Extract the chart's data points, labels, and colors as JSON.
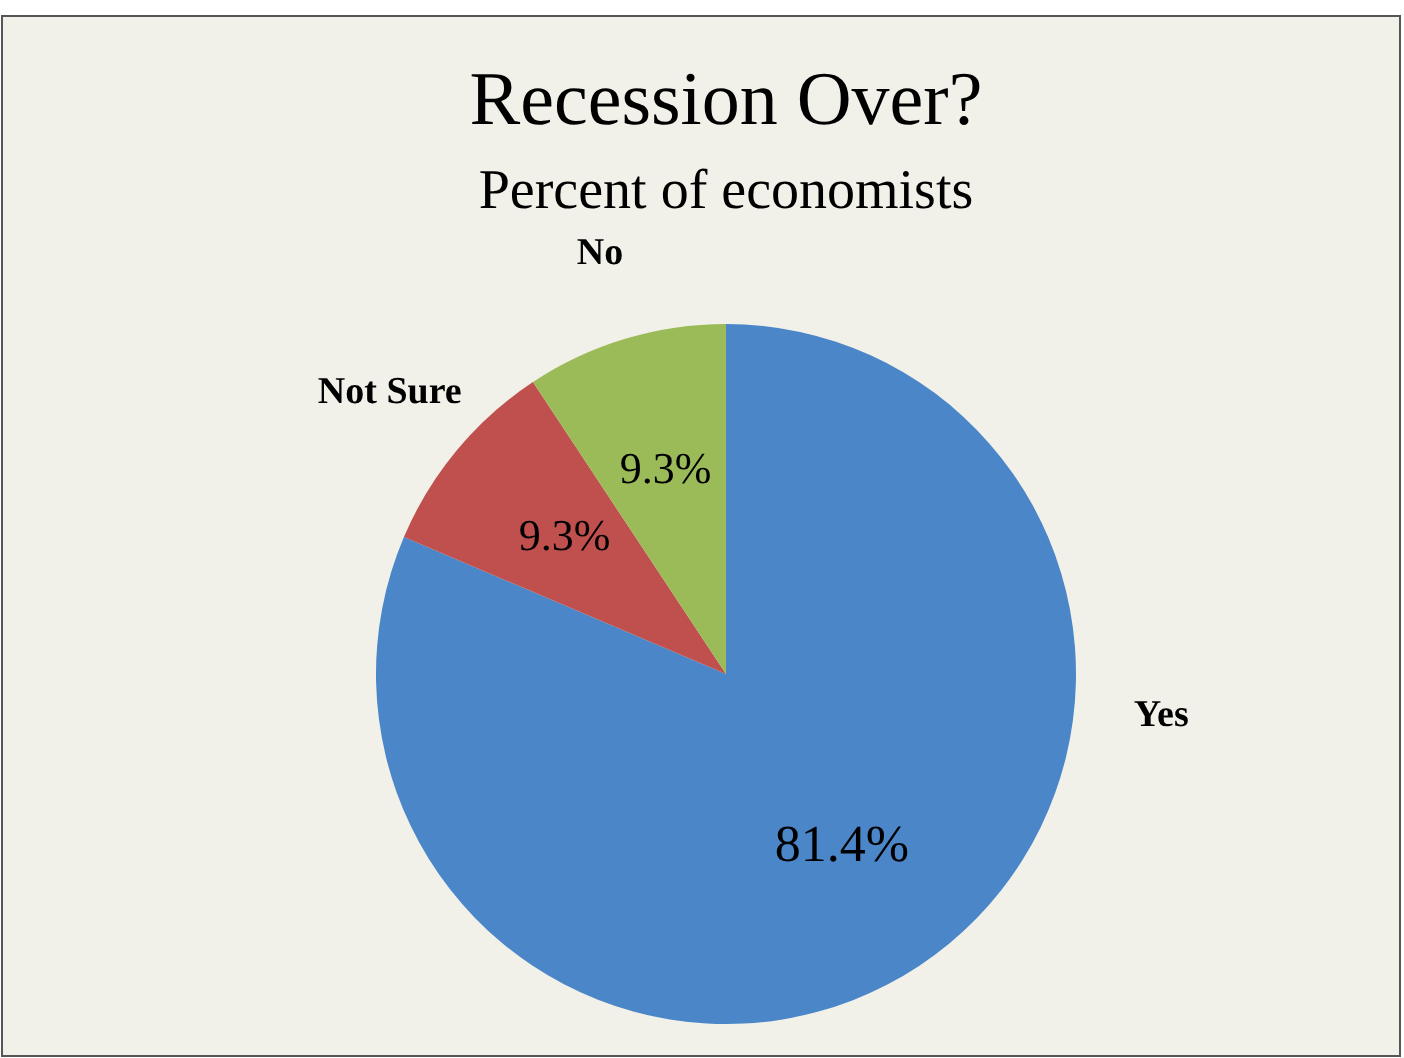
{
  "chart_data": {
    "type": "pie",
    "title": "Recession Over?",
    "subtitle": "Percent of economists",
    "categories": [
      "Yes",
      "Not Sure",
      "No"
    ],
    "values": [
      81.4,
      9.3,
      9.3
    ],
    "colors": [
      "#4a86c8",
      "#c0504d",
      "#9bbb59"
    ],
    "value_labels": [
      "81.4%",
      "9.3%",
      "9.3%"
    ]
  }
}
